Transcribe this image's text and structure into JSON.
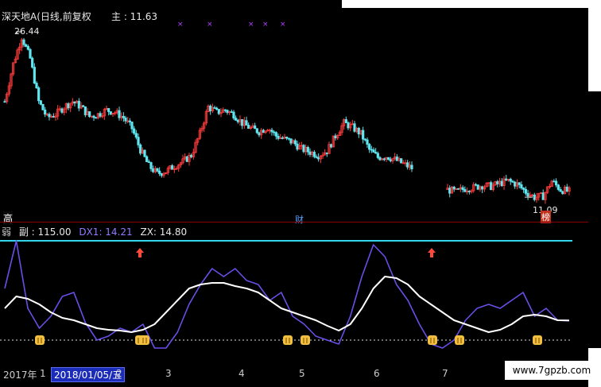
{
  "header": {
    "title": "深天地A(日线,前复权",
    "price_label": "主 : 11.63"
  },
  "price_chart": {
    "high_label": "26.44",
    "low_label": "11.09",
    "high_badge": "高",
    "fin_badge": "财",
    "list_badge": "榜",
    "markers": [
      "×",
      "×",
      "×",
      "×",
      "×"
    ]
  },
  "sub_chart": {
    "prefix": "弱",
    "fu_label": "副 : 115.00",
    "dx1_label": "DX1: 14.21",
    "zx_label": "ZX: 14.80",
    "colors": {
      "dx1": "#6a4ee8",
      "zx": "#ffffff",
      "ref_line": "#33d6e8",
      "signal": "#f2c040"
    }
  },
  "time_axis": {
    "labels": [
      "2017年",
      "1",
      "2",
      "3",
      "4",
      "5",
      "6",
      "7"
    ],
    "cursor_date": "2018/01/05/五"
  },
  "watermark": "www.7gpzb.com",
  "chart_data": [
    {
      "type": "candlestick",
      "title": "深天地A(日线,前复权",
      "series": [
        {
          "name": "主",
          "last": 11.63
        }
      ],
      "annotations": [
        {
          "label": "26.44",
          "kind": "high"
        },
        {
          "label": "11.09",
          "kind": "low"
        }
      ],
      "close_profile": [
        20.0,
        23.5,
        26.0,
        24.0,
        20.0,
        18.5,
        18.8,
        19.5,
        20.0,
        19.5,
        18.6,
        18.8,
        19.2,
        19.0,
        18.5,
        17.5,
        15.5,
        14.0,
        13.3,
        13.5,
        14.0,
        14.4,
        15.0,
        17.0,
        19.5,
        19.0,
        19.2,
        18.8,
        18.0,
        17.5,
        17.2,
        17.6,
        16.8,
        16.5,
        16.2,
        15.6,
        15.3,
        15.0,
        15.4,
        16.8,
        18.0,
        17.6,
        17.0,
        15.5,
        14.8,
        14.9,
        14.6,
        14.2,
        13.8
      ],
      "gap_after_index": 48,
      "close_profile_after_gap": [
        11.8,
        11.6,
        11.9,
        12.0,
        12.2,
        12.1,
        12.4,
        12.6,
        12.3,
        11.6,
        11.1,
        11.2,
        12.6,
        11.8,
        11.63
      ]
    },
    {
      "type": "line",
      "series": [
        {
          "name": "DX1",
          "last": 14.21,
          "values": [
            55,
            115,
            30,
            5,
            20,
            45,
            50,
            12,
            -10,
            -5,
            5,
            0,
            10,
            -20,
            -20,
            0,
            35,
            60,
            80,
            70,
            80,
            65,
            60,
            40,
            50,
            20,
            10,
            -5,
            -10,
            -15,
            20,
            70,
            110,
            95,
            60,
            40,
            10,
            -15,
            -20,
            -10,
            15,
            30,
            35,
            30,
            40,
            50,
            20,
            30,
            15,
            14.21
          ]
        },
        {
          "name": "ZX",
          "last": 14.8,
          "values": [
            30,
            45,
            42,
            35,
            25,
            18,
            15,
            10,
            5,
            3,
            2,
            0,
            3,
            10,
            25,
            40,
            55,
            60,
            62,
            62,
            58,
            55,
            50,
            40,
            30,
            25,
            20,
            15,
            8,
            2,
            10,
            30,
            55,
            70,
            68,
            60,
            45,
            35,
            25,
            15,
            10,
            5,
            0,
            3,
            10,
            20,
            22,
            20,
            15,
            14.8
          ]
        }
      ],
      "reference_lines": [
        {
          "value": 115
        },
        {
          "value": 0
        }
      ],
      "signals": [
        "bottom",
        "bottom",
        "bottom",
        "bottom",
        "bottom",
        "bottom",
        "bottom",
        "bottom"
      ]
    }
  ]
}
